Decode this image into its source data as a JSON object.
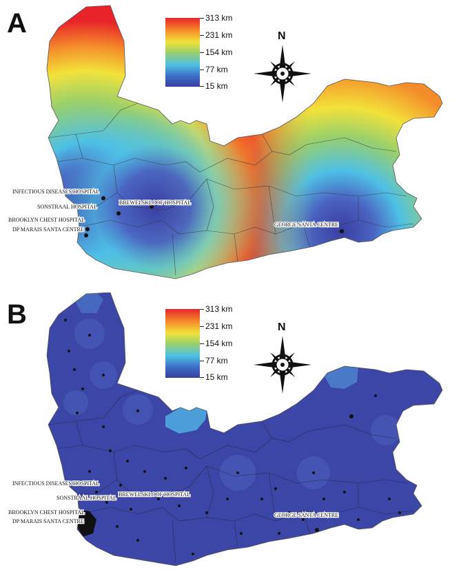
{
  "panels": [
    {
      "letter": "A",
      "legend": [
        "313 km",
        "231 km",
        "154 km",
        "77 km",
        "15 km"
      ],
      "compass": "N",
      "labels": {
        "infectious": "INFECTIOUS DISEASES HOSPITAL",
        "sonstraal": "SONSTRAAL HOSPITAL",
        "brewelskloof": "BREWELSKLOOF HOSPITAL",
        "brooklyn": "BROOKLYN CHEST HOSPITAL",
        "dpmarais": "DP MARAIS SANTA CENTRE",
        "george": "GEORGE SANTA CENTRE"
      }
    },
    {
      "letter": "B",
      "legend": [
        "313 km",
        "231 km",
        "154 km",
        "77 km",
        "15 km"
      ],
      "compass": "N",
      "labels": {
        "infectious": "INFECTIOUS DISEASES HOSPITAL",
        "sonstraal": "SONSTRAAL HOSPITAL",
        "brewelskloof": "BREWELSKLOOF HOSPITAL",
        "brooklyn": "BROOKLYN CHEST HOSPITAL",
        "dpmarais": "DP MARAIS SANTA CENTRE",
        "george": "GEORGE SANTA CENTRE"
      }
    }
  ],
  "colors": {
    "near": "#3a3ea0",
    "mid": "#4ec0e6",
    "midhigh": "#9bd06a",
    "high": "#f2e23a",
    "far": "#e8242a",
    "boundary": "#333333"
  }
}
